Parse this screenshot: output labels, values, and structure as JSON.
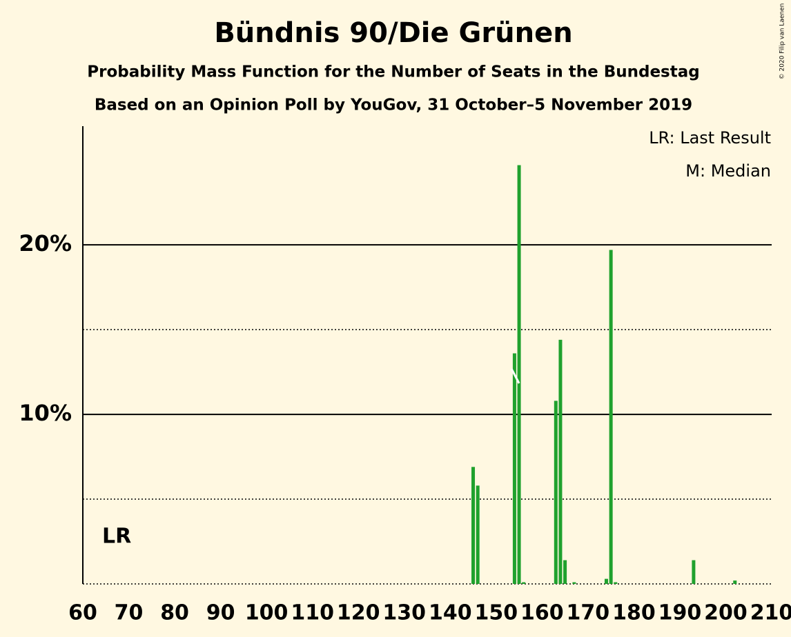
{
  "chart_data": {
    "type": "bar",
    "title": "Bündnis 90/Die Grünen",
    "subtitle": "Probability Mass Function for the Number of Seats in the Bundestag",
    "subtitle2": "Based on an Opinion Poll by YouGov, 31 October–5 November 2019",
    "copyright": "© 2020 Filip van Laenen",
    "legend": [
      "LR: Last Result",
      "M: Median"
    ],
    "lr_label": "LR",
    "median": 155,
    "color": "#1fa12d",
    "x": [
      145,
      146,
      154,
      155,
      156,
      163,
      164,
      165,
      167,
      174,
      175,
      176,
      193,
      202
    ],
    "values": [
      6.9,
      5.8,
      13.6,
      24.7,
      0.1,
      10.8,
      14.4,
      1.4,
      0.1,
      0.3,
      19.7,
      0.1,
      1.4,
      0.2
    ],
    "xlim": [
      60,
      210
    ],
    "xticks": [
      60,
      70,
      80,
      90,
      100,
      110,
      120,
      130,
      140,
      150,
      160,
      170,
      180,
      190,
      200,
      210
    ],
    "ylim": [
      0,
      27
    ],
    "yticks": [
      {
        "value": 10,
        "label": "10%"
      },
      {
        "value": 20,
        "label": "20%"
      }
    ],
    "minor_yticks": [
      5,
      15
    ]
  }
}
